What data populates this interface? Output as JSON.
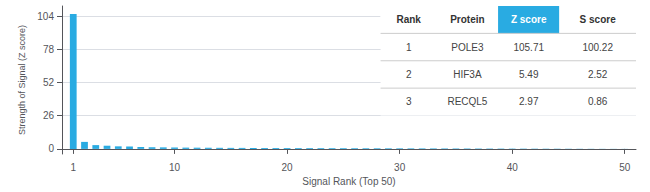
{
  "chart_data": {
    "type": "bar",
    "xlabel": "Signal Rank (Top 50)",
    "ylabel": "Strength of Signal (Z score)",
    "x": [
      1,
      2,
      3,
      4,
      5,
      6,
      7,
      8,
      9,
      10,
      11,
      12,
      13,
      14,
      15,
      16,
      17,
      18,
      19,
      20,
      21,
      22,
      23,
      24,
      25,
      26,
      27,
      28,
      29,
      30,
      31,
      32,
      33,
      34,
      35,
      36,
      37,
      38,
      39,
      40,
      41,
      42,
      43,
      44,
      45,
      46,
      47,
      48,
      49,
      50
    ],
    "values": [
      105.71,
      5.49,
      2.97,
      2.5,
      2.0,
      1.8,
      1.5,
      1.3,
      1.2,
      1.1,
      1.0,
      0.95,
      0.9,
      0.85,
      0.8,
      0.78,
      0.75,
      0.72,
      0.7,
      0.68,
      0.65,
      0.63,
      0.61,
      0.59,
      0.57,
      0.55,
      0.53,
      0.51,
      0.49,
      0.47,
      0.45,
      0.43,
      0.41,
      0.39,
      0.37,
      0.35,
      0.33,
      0.31,
      0.29,
      0.27,
      0.25,
      0.23,
      0.21,
      0.19,
      0.17,
      0.15,
      0.13,
      0.11,
      0.09,
      0.07
    ],
    "color": "#29ABE2",
    "xlim": [
      0,
      51
    ],
    "xticks": [
      1,
      10,
      20,
      30,
      40,
      50
    ],
    "ylim": [
      -4,
      112
    ],
    "yticks": [
      0,
      26,
      52,
      78,
      104
    ],
    "grid": true,
    "table": {
      "header": [
        "Rank",
        "Protein",
        "Z score",
        "S score"
      ],
      "rows": [
        [
          "1",
          "POLE3",
          "105.71",
          "100.22"
        ],
        [
          "2",
          "HIF3A",
          "5.49",
          "2.52"
        ],
        [
          "3",
          "RECQL5",
          "2.97",
          "0.86"
        ]
      ]
    }
  }
}
